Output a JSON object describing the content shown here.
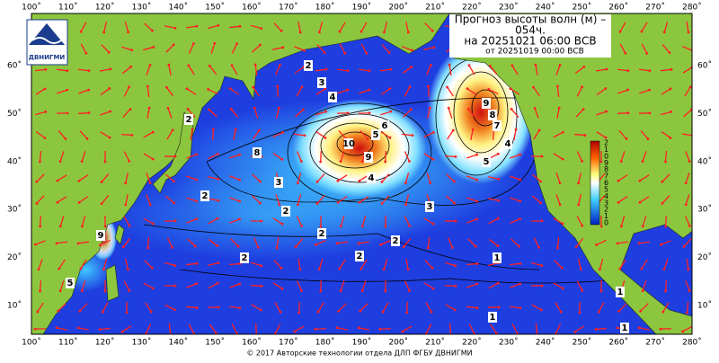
{
  "logo": "ДВНИГМИ",
  "title": {
    "line1": "Прогноз высоты волн (м) –",
    "line2": "054ч.",
    "line3": "на 20251021 06:00 ВСВ",
    "line4": "от 20251019 00:00 ВСВ"
  },
  "lon_labels": [
    "100˚",
    "110˚",
    "120˚",
    "130˚",
    "140˚",
    "150˚",
    "160˚",
    "170˚",
    "180˚",
    "190˚",
    "200˚",
    "210˚",
    "220˚",
    "230˚",
    "240˚",
    "250˚",
    "260˚",
    "270˚",
    "280˚"
  ],
  "lat_labels": [
    "60˚",
    "50˚",
    "40˚",
    "30˚",
    "20˚",
    "10˚"
  ],
  "colorbar_labels": [
    "2",
    "1",
    "0",
    "9",
    "8",
    "7",
    "6",
    "5",
    "4",
    "3",
    "2",
    "1",
    "0"
  ],
  "contour_labels": [
    "2",
    "3",
    "4",
    "5",
    "6",
    "9",
    "10",
    "9",
    "8",
    "7",
    "5",
    "4",
    "3",
    "2",
    "2",
    "3",
    "2",
    "2",
    "2",
    "2",
    "2",
    "1",
    "1",
    "1",
    "1",
    "5",
    "9",
    "8",
    "4"
  ],
  "copyright": "© 2017 Авторские технологии отдела ДЛП ФГБУ ДВНИГМИ"
}
